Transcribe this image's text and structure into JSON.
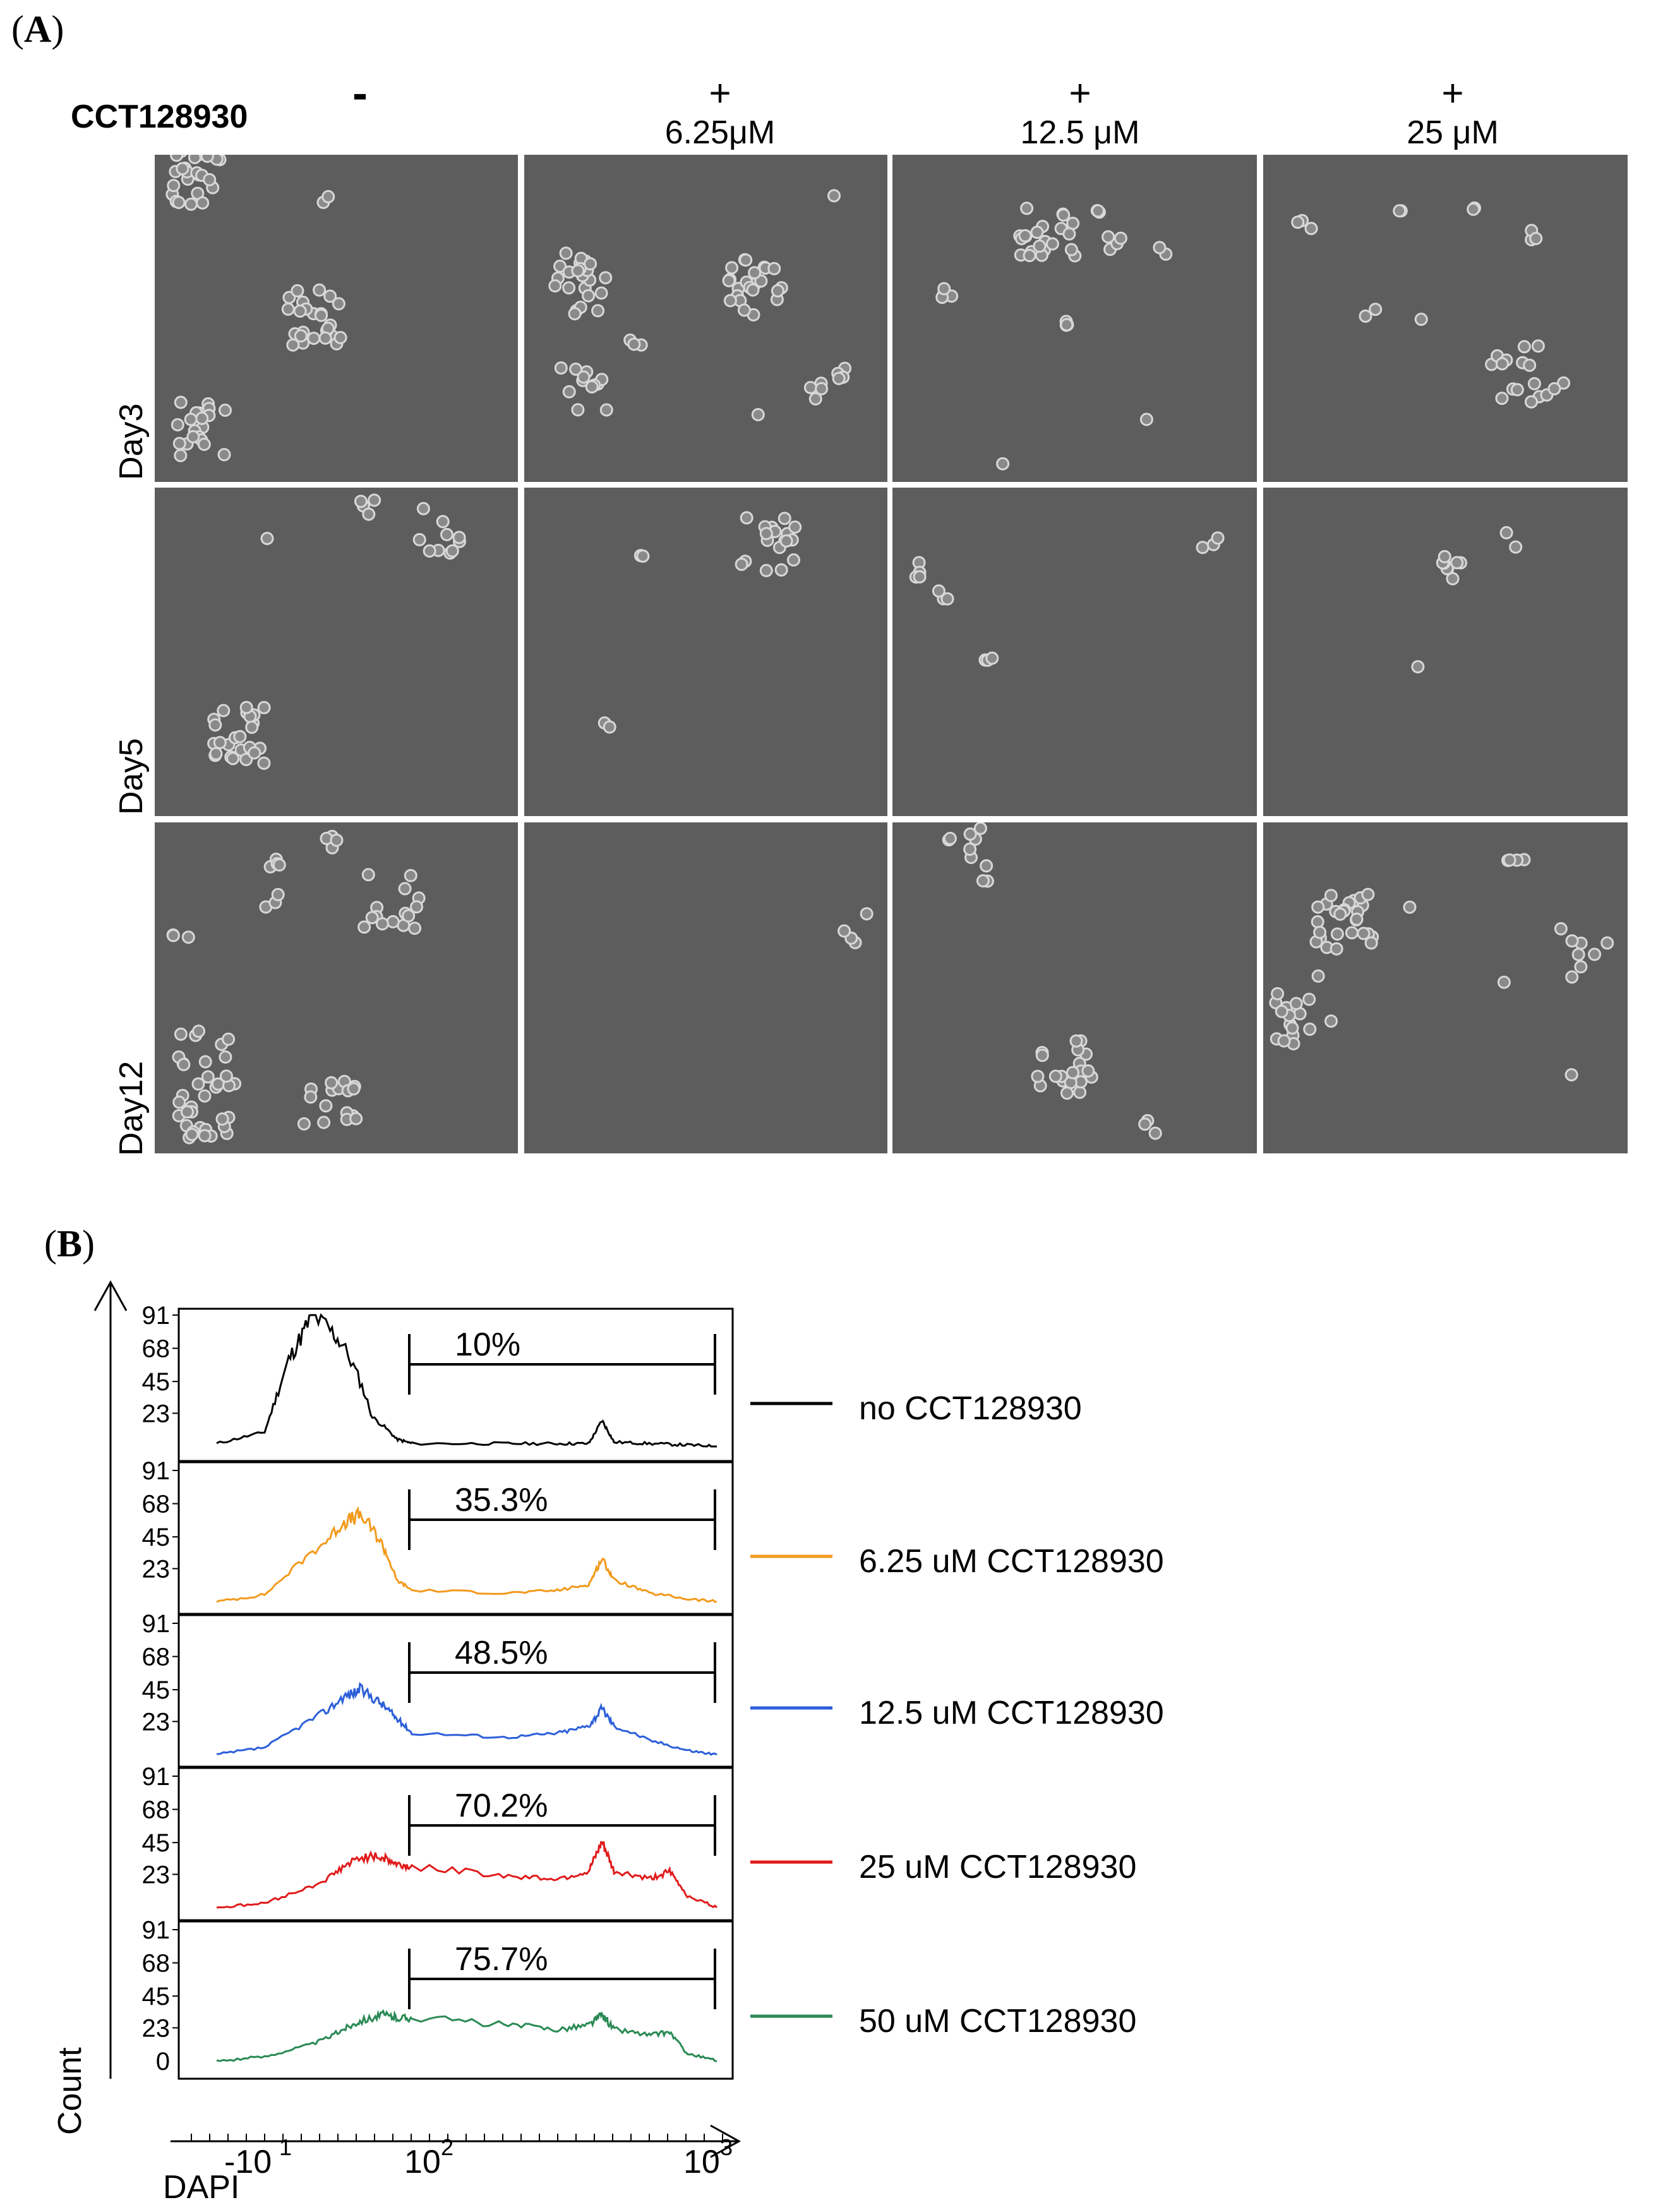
{
  "panel_a": {
    "label_open": "(",
    "label_letter": "A",
    "label_close": ")",
    "compound_label": "CCT128930",
    "conditions": [
      {
        "sign": "-",
        "conc": ""
      },
      {
        "sign": "+",
        "conc": "6.25μM"
      },
      {
        "sign": "+",
        "conc": "12.5 μM"
      },
      {
        "sign": "+",
        "conc": "25 μM"
      }
    ],
    "rows": [
      "Day3",
      "Day5",
      "Day12"
    ],
    "image_description_color": "#5d5d5d"
  },
  "panel_b": {
    "label_open": "(",
    "label_letter": "B",
    "label_close": ")",
    "y_axis_label": "Count",
    "x_axis_label": "DAPI",
    "x_ticks": [
      "-10",
      "1",
      "10",
      "2",
      "10",
      "3"
    ],
    "y_ticks_top": [
      "91",
      "68",
      "45",
      "23"
    ],
    "y_tick_zero": "0",
    "tracks": [
      {
        "name": "no CCT128930",
        "percent": "10%",
        "color": "#000000",
        "yticks": [
          "91",
          "68",
          "45",
          "23"
        ]
      },
      {
        "name": "6.25 uM CCT128930",
        "percent": "35.3%",
        "color": "#f29a1c",
        "yticks": [
          "91",
          "68",
          "45",
          "23"
        ]
      },
      {
        "name": "12.5 uM CCT128930",
        "percent": "48.5%",
        "color": "#2c5fd9",
        "yticks": [
          "91",
          "68",
          "45",
          "23"
        ]
      },
      {
        "name": "25 uM CCT128930",
        "percent": "70.2%",
        "color": "#e01b1b",
        "yticks": [
          "91",
          "68",
          "45",
          "23"
        ]
      },
      {
        "name": "50 uM CCT128930",
        "percent": "75.7%",
        "color": "#2a8a55",
        "yticks": [
          "91",
          "68",
          "45",
          "23"
        ]
      }
    ]
  },
  "chart_data": {
    "type": "area",
    "xlabel": "DAPI",
    "ylabel": "Count",
    "ylim": [
      0,
      91
    ],
    "x_scale": "log",
    "x_tick_labels": [
      "-10^1",
      "10^2",
      "10^3"
    ],
    "y_tick_labels": [
      "0",
      "23",
      "45",
      "68",
      "91"
    ],
    "gate_percentages": [
      "10%",
      "35.3%",
      "48.5%",
      "70.2%",
      "75.7%"
    ],
    "series": [
      {
        "name": "no CCT128930",
        "color": "#000000",
        "x": [
          -10,
          0,
          5,
          10,
          20,
          40,
          70,
          100,
          200,
          300,
          380,
          420,
          460,
          600,
          800,
          1000
        ],
        "values": [
          2,
          10,
          60,
          91,
          70,
          20,
          5,
          2,
          2,
          2,
          2,
          18,
          3,
          2,
          1,
          0
        ]
      },
      {
        "name": "6.25 uM CCT128930",
        "color": "#f29a1c",
        "x": [
          -10,
          0,
          10,
          20,
          30,
          50,
          70,
          100,
          200,
          300,
          380,
          420,
          460,
          600,
          800,
          1000
        ],
        "values": [
          0,
          5,
          35,
          55,
          60,
          40,
          15,
          8,
          6,
          8,
          12,
          30,
          15,
          6,
          2,
          0
        ]
      },
      {
        "name": "12.5 uM CCT128930",
        "color": "#2c5fd9",
        "x": [
          -10,
          0,
          10,
          20,
          30,
          50,
          70,
          100,
          200,
          300,
          380,
          420,
          460,
          600,
          800,
          1000
        ],
        "values": [
          0,
          5,
          25,
          40,
          45,
          35,
          25,
          15,
          12,
          15,
          20,
          32,
          20,
          10,
          3,
          0
        ]
      },
      {
        "name": "25 uM CCT128930",
        "color": "#e01b1b",
        "x": [
          -10,
          0,
          10,
          20,
          30,
          50,
          70,
          100,
          200,
          300,
          380,
          420,
          460,
          600,
          700,
          800,
          1000
        ],
        "values": [
          0,
          3,
          15,
          28,
          35,
          35,
          30,
          28,
          22,
          20,
          25,
          45,
          25,
          20,
          25,
          8,
          0
        ]
      },
      {
        "name": "50 uM CCT128930",
        "color": "#2a8a55",
        "x": [
          -10,
          0,
          10,
          20,
          30,
          50,
          70,
          100,
          200,
          300,
          380,
          420,
          460,
          600,
          700,
          800,
          1000
        ],
        "values": [
          0,
          3,
          12,
          22,
          28,
          32,
          30,
          30,
          25,
          22,
          25,
          32,
          22,
          18,
          20,
          5,
          0
        ]
      }
    ]
  }
}
